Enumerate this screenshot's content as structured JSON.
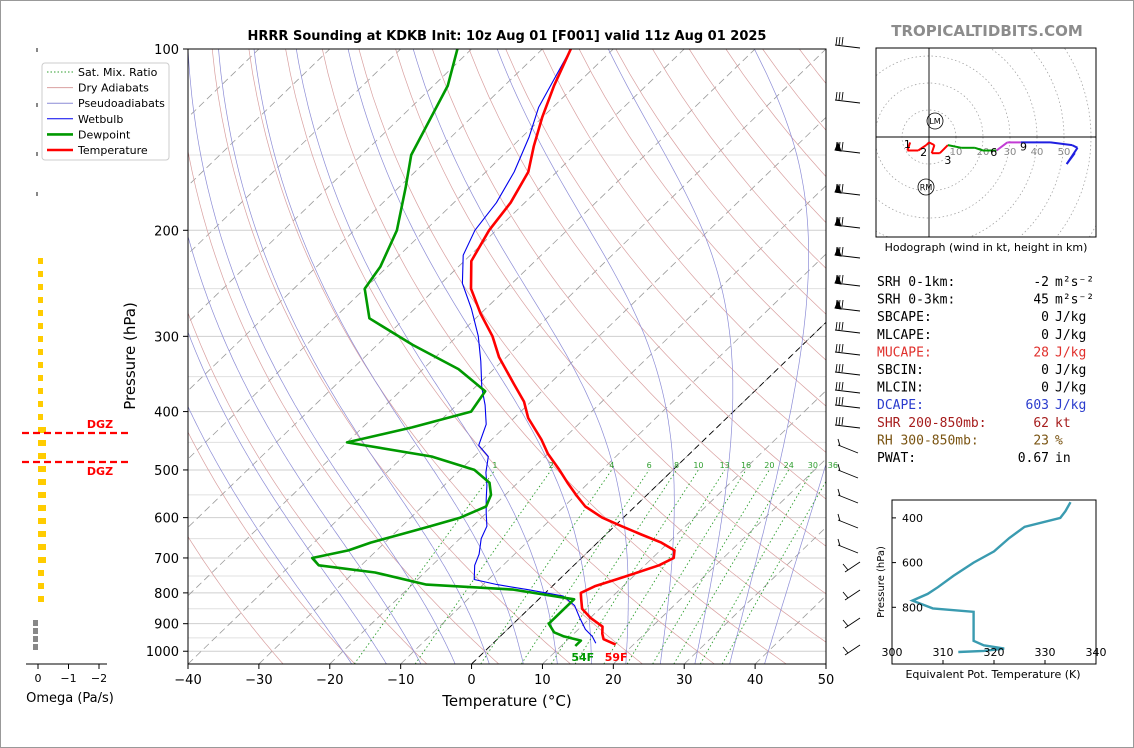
{
  "brand": "TROPICALTIDBITS.COM",
  "chart_data": [
    {
      "type": "line",
      "name": "skewt",
      "title": "HRRR Sounding at KDKB Init: 10z Aug 01 [F001] valid 11z Aug 01 2025",
      "xlabel": "Temperature (°C)",
      "ylabel": "Pressure (hPa)",
      "xlim": [
        -40,
        50
      ],
      "ylim": [
        1050,
        100
      ],
      "x_ticks": [
        -40,
        -30,
        -20,
        -10,
        0,
        10,
        20,
        30,
        40,
        50
      ],
      "y_ticks": [
        100,
        200,
        300,
        400,
        500,
        600,
        700,
        800,
        900,
        1000
      ],
      "legend": [
        "Sat. Mix. Ratio",
        "Dry Adiabats",
        "Pseudoadiabats",
        "Wetbulb",
        "Dewpoint",
        "Temperature"
      ],
      "legend_position": "top-left",
      "mixing_ratio_labels": [
        "1",
        "2",
        "4",
        "6",
        "8",
        "10",
        "13",
        "16",
        "20",
        "24",
        "30",
        "36"
      ],
      "surface_dewpoint_label": "54F",
      "surface_temperature_label": "59F",
      "series": [
        {
          "name": "Temperature",
          "points": [
            [
              17.5,
              975
            ],
            [
              15,
              955
            ],
            [
              14,
              935
            ],
            [
              13,
              910
            ],
            [
              10,
              880
            ],
            [
              7.5,
              850
            ],
            [
              6,
              820
            ],
            [
              5,
              800
            ],
            [
              6,
              780
            ],
            [
              8,
              760
            ],
            [
              10,
              740
            ],
            [
              12,
              720
            ],
            [
              13,
              700
            ],
            [
              12,
              680
            ],
            [
              9,
              660
            ],
            [
              5,
              640
            ],
            [
              1,
              620
            ],
            [
              -3,
              600
            ],
            [
              -7,
              575
            ],
            [
              -10,
              550
            ],
            [
              -13,
              525
            ],
            [
              -16,
              500
            ],
            [
              -20,
              470
            ],
            [
              -23,
              445
            ],
            [
              -28,
              410
            ],
            [
              -31,
              385
            ],
            [
              -35,
              360
            ],
            [
              -41,
              325
            ],
            [
              -45,
              300
            ],
            [
              -50,
              275
            ],
            [
              -55,
              250
            ],
            [
              -59,
              225
            ],
            [
              -61,
              200
            ],
            [
              -62,
              180
            ],
            [
              -64,
              160
            ],
            [
              -67,
              145
            ],
            [
              -70,
              130
            ],
            [
              -73,
              115
            ],
            [
              -76,
              100
            ]
          ]
        },
        {
          "name": "Dewpoint",
          "points": [
            [
              12,
              980
            ],
            [
              12,
              960
            ],
            [
              9,
              945
            ],
            [
              7,
              930
            ],
            [
              5,
              900
            ],
            [
              5,
              850
            ],
            [
              5,
              820
            ],
            [
              -5,
              790
            ],
            [
              -18,
              775
            ],
            [
              -27,
              740
            ],
            [
              -36,
              720
            ],
            [
              -38,
              700
            ],
            [
              -34,
              680
            ],
            [
              -32,
              660
            ],
            [
              -29,
              640
            ],
            [
              -26,
              620
            ],
            [
              -23,
              600
            ],
            [
              -21,
              575
            ],
            [
              -22,
              550
            ],
            [
              -24,
              525
            ],
            [
              -28,
              500
            ],
            [
              -36,
              475
            ],
            [
              -50,
              450
            ],
            [
              -43,
              425
            ],
            [
              -37,
              400
            ],
            [
              -38,
              370
            ],
            [
              -45,
              340
            ],
            [
              -55,
              310
            ],
            [
              -65,
              280
            ],
            [
              -70,
              250
            ],
            [
              -71,
              230
            ],
            [
              -74,
              200
            ],
            [
              -79,
              170
            ],
            [
              -83,
              150
            ],
            [
              -88,
              115
            ],
            [
              -92,
              100
            ]
          ]
        },
        {
          "name": "Wetbulb",
          "points": [
            [
              14.5,
              970
            ],
            [
              13,
              945
            ],
            [
              11,
              920
            ],
            [
              8.5,
              880
            ],
            [
              6,
              840
            ],
            [
              3,
              810
            ],
            [
              -3,
              790
            ],
            [
              -8,
              775
            ],
            [
              -12,
              760
            ],
            [
              -14,
              720
            ],
            [
              -15,
              690
            ],
            [
              -17,
              650
            ],
            [
              -18,
              620
            ],
            [
              -20,
              590
            ],
            [
              -22,
              560
            ],
            [
              -24,
              530
            ],
            [
              -26,
              505
            ],
            [
              -28,
              475
            ],
            [
              -31,
              455
            ],
            [
              -33,
              420
            ],
            [
              -36,
              390
            ],
            [
              -39,
              365
            ],
            [
              -43,
              330
            ],
            [
              -47,
              300
            ],
            [
              -52,
              270
            ],
            [
              -57,
              245
            ],
            [
              -61,
              220
            ],
            [
              -63,
              200
            ],
            [
              -64,
              180
            ],
            [
              -66,
              160
            ],
            [
              -69,
              140
            ],
            [
              -72,
              125
            ],
            [
              -76,
              100
            ]
          ]
        }
      ]
    },
    {
      "type": "line",
      "name": "omega",
      "xlabel": "Omega (Pa/s)",
      "x_ticks": [
        "0",
        "−1",
        "−2"
      ],
      "ylim": [
        1050,
        100
      ],
      "dgz_label": "DGZ",
      "dgz_bounds_hpa": [
        440,
        483
      ]
    },
    {
      "type": "line",
      "name": "hodograph",
      "caption": "Hodograph (wind in kt, height in km)",
      "ring_labels": [
        "10",
        "20",
        "30",
        "40",
        "50"
      ],
      "height_labels": [
        "1",
        "2",
        "3",
        "6",
        "9"
      ],
      "storm_motion_labels": [
        "LM",
        "RM"
      ],
      "trace": [
        [
          -7,
          -2
        ],
        [
          -8,
          -5
        ],
        [
          -4,
          -5
        ],
        [
          -1,
          -3
        ],
        [
          0,
          -2
        ],
        [
          2,
          -3
        ],
        [
          1,
          -6
        ],
        [
          4,
          -6
        ],
        [
          7,
          -3
        ],
        [
          12,
          -4
        ],
        [
          17,
          -4
        ],
        [
          20,
          -5
        ],
        [
          25,
          -5
        ],
        [
          29,
          -2
        ],
        [
          34,
          -2
        ],
        [
          45,
          -2
        ],
        [
          53,
          -3
        ],
        [
          55,
          -4
        ],
        [
          53,
          -7
        ],
        [
          51,
          -10
        ],
        [
          54,
          -6
        ]
      ]
    },
    {
      "type": "line",
      "name": "theta-e",
      "xlabel": "Equivalent Pot. Temperature (K)",
      "ylabel": "Pressure (hPa)",
      "xlim": [
        300,
        340
      ],
      "ylim": [
        1000,
        320
      ],
      "x_ticks": [
        "300",
        "310",
        "320",
        "330",
        "340"
      ],
      "y_ticks": [
        "400",
        "600",
        "800"
      ],
      "points": [
        [
          313,
          1000
        ],
        [
          318,
          995
        ],
        [
          322,
          985
        ],
        [
          318,
          970
        ],
        [
          316,
          950
        ],
        [
          316,
          900
        ],
        [
          316,
          820
        ],
        [
          308,
          805
        ],
        [
          304,
          770
        ],
        [
          307,
          740
        ],
        [
          309,
          710
        ],
        [
          312,
          660
        ],
        [
          316,
          600
        ],
        [
          320,
          550
        ],
        [
          323,
          490
        ],
        [
          326,
          440
        ],
        [
          333,
          400
        ],
        [
          334,
          370
        ],
        [
          335,
          330
        ]
      ]
    }
  ],
  "indices": [
    {
      "label": "SRH 0-1km:",
      "value": "-2",
      "unit": "m²s⁻²",
      "color": "#000000"
    },
    {
      "label": "SRH 0-3km:",
      "value": "45",
      "unit": "m²s⁻²",
      "color": "#000000"
    },
    {
      "label": "SBCAPE:",
      "value": "0",
      "unit": "J/kg",
      "color": "#000000"
    },
    {
      "label": "MLCAPE:",
      "value": "0",
      "unit": "J/kg",
      "color": "#000000"
    },
    {
      "label": "MUCAPE:",
      "value": "28",
      "unit": "J/kg",
      "color": "#e0302c"
    },
    {
      "label": "SBCIN:",
      "value": "0",
      "unit": "J/kg",
      "color": "#000000"
    },
    {
      "label": "MLCIN:",
      "value": "0",
      "unit": "J/kg",
      "color": "#000000"
    },
    {
      "label": "DCAPE:",
      "value": "603",
      "unit": "J/kg",
      "color": "#2b3ccd"
    },
    {
      "label": "SHR 200-850mb:",
      "value": "62",
      "unit": "kt",
      "color": "#a61c1c"
    },
    {
      "label": "RH 300-850mb:",
      "value": "23",
      "unit": "%",
      "color": "#7a5412"
    },
    {
      "label": "PWAT:",
      "value": "0.67",
      "unit": "in",
      "color": "#000000"
    }
  ],
  "colors": {
    "temperature": "#ff0000",
    "dewpoint": "#009900",
    "wetbulb": "#0000ee",
    "theta_e": "#3a9bb0",
    "omega": "#ffcc00",
    "mixing": "#2e9e2e"
  }
}
